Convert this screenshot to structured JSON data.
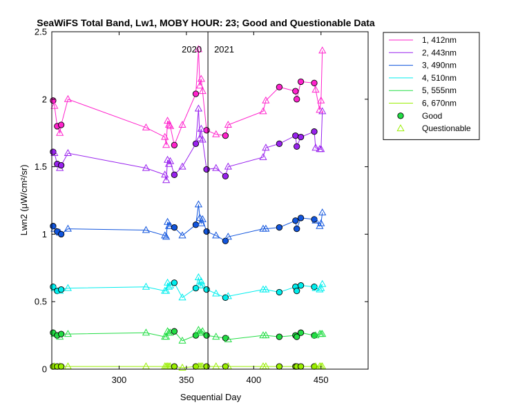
{
  "chart_data": {
    "type": "line",
    "title": "SeaWiFS Total Band, Lw1, MOBY HOUR: 23;  Good and Questionable Data",
    "xlabel": "Sequential Day",
    "ylabel": "Lwn2 (μW/cm²/sr)",
    "xlim": [
      250,
      485
    ],
    "ylim": [
      0,
      2.5
    ],
    "xticks": [
      300,
      350,
      400,
      450
    ],
    "xtick_labels": [
      "300",
      "350",
      "400",
      "450"
    ],
    "yticks": [
      0,
      0.5,
      1,
      1.5,
      2,
      2.5
    ],
    "ytick_labels": [
      "0",
      "0.5",
      "1",
      "1.5",
      "2",
      "2.5"
    ],
    "grid": false,
    "legend_position": "outside-top-right",
    "year_divider": {
      "x": 366,
      "labels": [
        "2020",
        "2021"
      ]
    },
    "x": [
      251,
      252,
      254,
      256,
      257,
      262,
      320,
      334,
      335,
      336,
      337,
      338,
      341,
      347,
      357,
      359,
      360,
      361,
      362,
      365,
      372,
      379,
      381,
      407,
      409,
      419,
      431,
      432,
      435,
      445,
      446,
      449,
      450,
      451
    ],
    "series": [
      {
        "name": "1, 412nm",
        "color": "#ff22cc",
        "values": [
          1.99,
          1.95,
          1.8,
          1.75,
          1.81,
          2.0,
          1.79,
          1.72,
          1.66,
          1.84,
          1.81,
          1.8,
          1.66,
          1.81,
          2.04,
          2.37,
          2.1,
          2.15,
          2.06,
          1.77,
          1.74,
          1.73,
          1.81,
          1.91,
          1.99,
          2.09,
          2.06,
          2.0,
          2.13,
          2.12,
          2.07,
          1.92,
          1.99,
          2.36
        ],
        "flags": [
          "g",
          "q",
          "g",
          "q",
          "g",
          "q",
          "q",
          "q",
          "q",
          "q",
          "q",
          "q",
          "g",
          "q",
          "g",
          "q",
          "q",
          "q",
          "q",
          "g",
          "q",
          "g",
          "q",
          "q",
          "q",
          "g",
          "g",
          "g",
          "g",
          "g",
          "q",
          "q",
          "q",
          "q"
        ]
      },
      {
        "name": "2, 443nm",
        "color": "#9922ee",
        "values": [
          1.61,
          1.6,
          1.52,
          1.49,
          1.51,
          1.6,
          1.49,
          1.44,
          1.4,
          1.55,
          1.52,
          1.54,
          1.44,
          1.5,
          1.67,
          1.93,
          1.71,
          1.78,
          1.7,
          1.48,
          1.49,
          1.43,
          1.5,
          1.57,
          1.64,
          1.67,
          1.73,
          1.65,
          1.72,
          1.76,
          1.64,
          1.63,
          1.63,
          1.91
        ],
        "flags": [
          "g",
          "q",
          "g",
          "q",
          "g",
          "q",
          "q",
          "q",
          "q",
          "q",
          "q",
          "q",
          "g",
          "q",
          "g",
          "q",
          "q",
          "q",
          "q",
          "g",
          "q",
          "g",
          "q",
          "q",
          "q",
          "g",
          "g",
          "g",
          "g",
          "g",
          "q",
          "q",
          "q",
          "q"
        ]
      },
      {
        "name": "3, 490nm",
        "color": "#1155dd",
        "values": [
          1.06,
          1.04,
          1.02,
          1.01,
          1.0,
          1.04,
          1.03,
          0.99,
          0.98,
          1.09,
          1.06,
          1.06,
          1.05,
          0.99,
          1.07,
          1.22,
          1.12,
          1.08,
          1.11,
          1.02,
          0.99,
          0.95,
          0.98,
          1.04,
          1.04,
          1.05,
          1.1,
          1.04,
          1.12,
          1.11,
          1.1,
          1.06,
          1.08,
          1.16
        ],
        "flags": [
          "g",
          "q",
          "g",
          "q",
          "g",
          "q",
          "q",
          "q",
          "q",
          "q",
          "q",
          "q",
          "g",
          "q",
          "g",
          "q",
          "q",
          "q",
          "q",
          "g",
          "q",
          "g",
          "q",
          "q",
          "q",
          "g",
          "g",
          "g",
          "g",
          "g",
          "q",
          "q",
          "q",
          "q"
        ]
      },
      {
        "name": "4, 510nm",
        "color": "#00eeee",
        "values": [
          0.61,
          0.6,
          0.58,
          0.58,
          0.59,
          0.6,
          0.61,
          0.58,
          0.58,
          0.64,
          0.61,
          0.62,
          0.64,
          0.53,
          0.6,
          0.68,
          0.62,
          0.65,
          0.62,
          0.59,
          0.56,
          0.53,
          0.54,
          0.59,
          0.59,
          0.57,
          0.61,
          0.58,
          0.62,
          0.61,
          0.6,
          0.59,
          0.6,
          0.63
        ],
        "flags": [
          "g",
          "q",
          "g",
          "q",
          "g",
          "q",
          "q",
          "q",
          "q",
          "q",
          "q",
          "q",
          "g",
          "q",
          "g",
          "q",
          "q",
          "q",
          "q",
          "g",
          "q",
          "g",
          "q",
          "q",
          "q",
          "g",
          "g",
          "g",
          "g",
          "g",
          "q",
          "q",
          "q",
          "q"
        ]
      },
      {
        "name": "5, 555nm",
        "color": "#22dd44",
        "values": [
          0.27,
          0.26,
          0.25,
          0.24,
          0.26,
          0.26,
          0.27,
          0.24,
          0.24,
          0.28,
          0.27,
          0.27,
          0.28,
          0.21,
          0.25,
          0.29,
          0.27,
          0.27,
          0.28,
          0.25,
          0.24,
          0.23,
          0.22,
          0.25,
          0.25,
          0.24,
          0.25,
          0.24,
          0.27,
          0.25,
          0.25,
          0.26,
          0.26,
          0.26
        ],
        "flags": [
          "g",
          "q",
          "g",
          "q",
          "g",
          "q",
          "q",
          "q",
          "q",
          "q",
          "q",
          "q",
          "g",
          "q",
          "g",
          "q",
          "q",
          "q",
          "q",
          "g",
          "q",
          "g",
          "q",
          "q",
          "q",
          "g",
          "g",
          "g",
          "g",
          "g",
          "q",
          "q",
          "q",
          "q"
        ]
      },
      {
        "name": "6, 670nm",
        "color": "#99ee00",
        "values": [
          0.02,
          0.02,
          0.02,
          0.02,
          0.02,
          0.02,
          0.02,
          0.02,
          0.02,
          0.02,
          0.02,
          0.02,
          0.02,
          0.01,
          0.02,
          0.02,
          0.02,
          0.02,
          0.02,
          0.02,
          0.02,
          0.02,
          0.02,
          0.02,
          0.02,
          0.02,
          0.02,
          0.02,
          0.02,
          0.02,
          0.02,
          0.02,
          0.02,
          0.02
        ],
        "flags": [
          "g",
          "q",
          "g",
          "q",
          "g",
          "q",
          "q",
          "q",
          "q",
          "q",
          "q",
          "q",
          "g",
          "q",
          "g",
          "q",
          "q",
          "q",
          "q",
          "g",
          "q",
          "g",
          "q",
          "q",
          "q",
          "g",
          "g",
          "g",
          "g",
          "g",
          "q",
          "q",
          "q",
          "q"
        ]
      }
    ],
    "marker_legend": [
      {
        "label": "Good",
        "marker": "circle",
        "color": "#22dd44"
      },
      {
        "label": "Questionable",
        "marker": "triangle",
        "color": "#99ee00"
      }
    ]
  }
}
